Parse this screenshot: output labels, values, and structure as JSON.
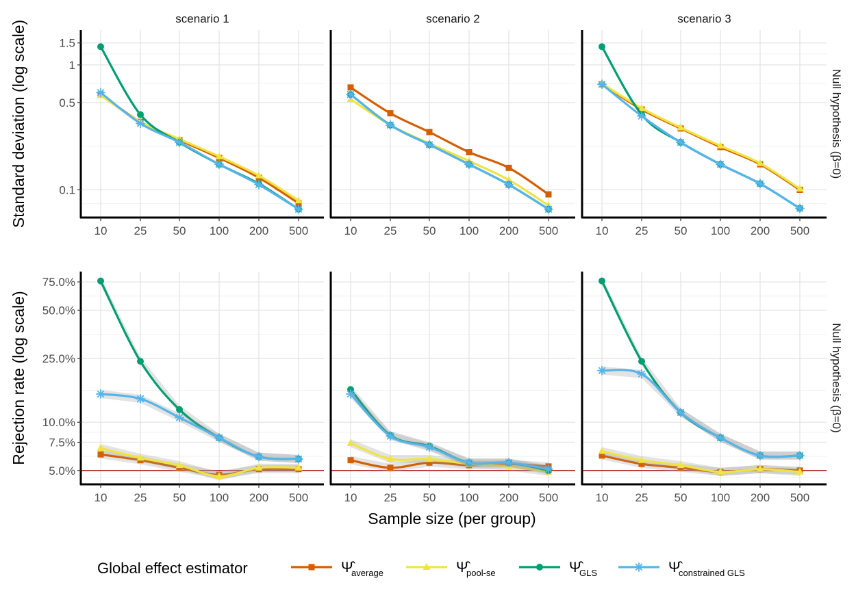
{
  "figure": {
    "x_axis_title": "Sample size (per group)",
    "legend_title": "Global effect estimator",
    "legend": [
      {
        "key": "average",
        "symbol": "Ψ̂",
        "subscript": "average",
        "color": "#D55E00",
        "marker": "square"
      },
      {
        "key": "pool_se",
        "symbol": "Ψ̂",
        "subscript": "pool-se",
        "color": "#F0E442",
        "marker": "triangle"
      },
      {
        "key": "gls",
        "symbol": "Ψ̂",
        "subscript": "GLS",
        "color": "#009E73",
        "marker": "circle"
      },
      {
        "key": "cgls",
        "symbol": "Ψ̂",
        "subscript": "constrained GLS",
        "color": "#56B4E9",
        "marker": "asterisk"
      }
    ]
  },
  "chart_data": [
    {
      "type": "line",
      "row_strip": "Null hypothesis (β=0)",
      "ylabel": "Standard deviation (log scale)",
      "yscale": "log",
      "yticks": [
        0.1,
        0.5,
        1,
        1.5
      ],
      "ytick_labels": [
        "0.1",
        "0.5",
        "1",
        "1.5"
      ],
      "ylim": [
        0.06,
        1.9
      ],
      "categories": [
        "10",
        "25",
        "50",
        "100",
        "200",
        "500"
      ],
      "panels": [
        {
          "strip": "scenario 1",
          "series": [
            {
              "key": "average",
              "values": [
                0.58,
                0.35,
                0.25,
                0.18,
                0.125,
                0.078
              ]
            },
            {
              "key": "pool_se",
              "values": [
                0.57,
                0.35,
                0.255,
                0.185,
                0.13,
                0.082
              ]
            },
            {
              "key": "gls",
              "values": [
                1.4,
                0.4,
                0.24,
                0.16,
                0.112,
                0.07
              ]
            },
            {
              "key": "cgls",
              "values": [
                0.6,
                0.34,
                0.24,
                0.16,
                0.11,
                0.07
              ]
            }
          ]
        },
        {
          "strip": "scenario 2",
          "series": [
            {
              "key": "average",
              "values": [
                0.66,
                0.41,
                0.29,
                0.2,
                0.15,
                0.092
              ]
            },
            {
              "key": "pool_se",
              "values": [
                0.53,
                0.33,
                0.235,
                0.17,
                0.12,
                0.075
              ]
            },
            {
              "key": "gls",
              "values": [
                0.58,
                0.33,
                0.23,
                0.16,
                0.11,
                0.07
              ]
            },
            {
              "key": "cgls",
              "values": [
                0.58,
                0.33,
                0.23,
                0.16,
                0.11,
                0.07
              ]
            }
          ]
        },
        {
          "strip": "scenario 3",
          "series": [
            {
              "key": "average",
              "values": [
                0.7,
                0.44,
                0.31,
                0.22,
                0.16,
                0.1
              ]
            },
            {
              "key": "pool_se",
              "values": [
                0.71,
                0.45,
                0.315,
                0.225,
                0.163,
                0.102
              ]
            },
            {
              "key": "gls",
              "values": [
                1.4,
                0.4,
                0.24,
                0.16,
                0.112,
                0.071
              ]
            },
            {
              "key": "cgls",
              "values": [
                0.7,
                0.39,
                0.24,
                0.16,
                0.112,
                0.071
              ]
            }
          ]
        }
      ]
    },
    {
      "type": "line",
      "row_strip": "Null hypothesis (β=0)",
      "ylabel": "Rejection rate (log scale)",
      "yscale": "log",
      "yticks": [
        5,
        7.5,
        10,
        25,
        50,
        75
      ],
      "ytick_labels": [
        "5.0%",
        "7.5%",
        "10.0%",
        "25.0%",
        "50.0%",
        "75.0%"
      ],
      "ylim": [
        4.1,
        87
      ],
      "reference_line": {
        "value": 5,
        "color": "#B22222"
      },
      "categories": [
        "10",
        "25",
        "50",
        "100",
        "200",
        "500"
      ],
      "panels": [
        {
          "strip": "scenario 1",
          "series": [
            {
              "key": "average",
              "values": [
                6.3,
                5.8,
                5.2,
                4.7,
                5.1,
                5.1
              ]
            },
            {
              "key": "pool_se",
              "values": [
                6.9,
                6.0,
                5.4,
                4.6,
                5.2,
                5.2
              ]
            },
            {
              "key": "gls",
              "values": [
                76,
                24,
                12,
                8,
                6.1,
                5.9
              ]
            },
            {
              "key": "cgls",
              "values": [
                15,
                14,
                10.7,
                8,
                6.1,
                5.9
              ]
            }
          ]
        },
        {
          "strip": "scenario 2",
          "series": [
            {
              "key": "average",
              "values": [
                5.8,
                5.2,
                5.6,
                5.4,
                5.5,
                5.3
              ]
            },
            {
              "key": "pool_se",
              "values": [
                7.4,
                5.9,
                5.9,
                5.5,
                5.3,
                4.9
              ]
            },
            {
              "key": "gls",
              "values": [
                16,
                8.3,
                7.1,
                5.6,
                5.6,
                5.0
              ]
            },
            {
              "key": "cgls",
              "values": [
                15,
                8.2,
                7.0,
                5.6,
                5.6,
                5.1
              ]
            }
          ]
        },
        {
          "strip": "scenario 3",
          "series": [
            {
              "key": "average",
              "values": [
                6.2,
                5.5,
                5.2,
                4.9,
                5.1,
                5.0
              ]
            },
            {
              "key": "pool_se",
              "values": [
                6.6,
                5.8,
                5.4,
                4.9,
                5.1,
                4.9
              ]
            },
            {
              "key": "gls",
              "values": [
                76,
                24,
                11.5,
                8,
                6.2,
                6.2
              ]
            },
            {
              "key": "cgls",
              "values": [
                21,
                20,
                11.5,
                8,
                6.2,
                6.2
              ]
            }
          ]
        }
      ]
    }
  ]
}
